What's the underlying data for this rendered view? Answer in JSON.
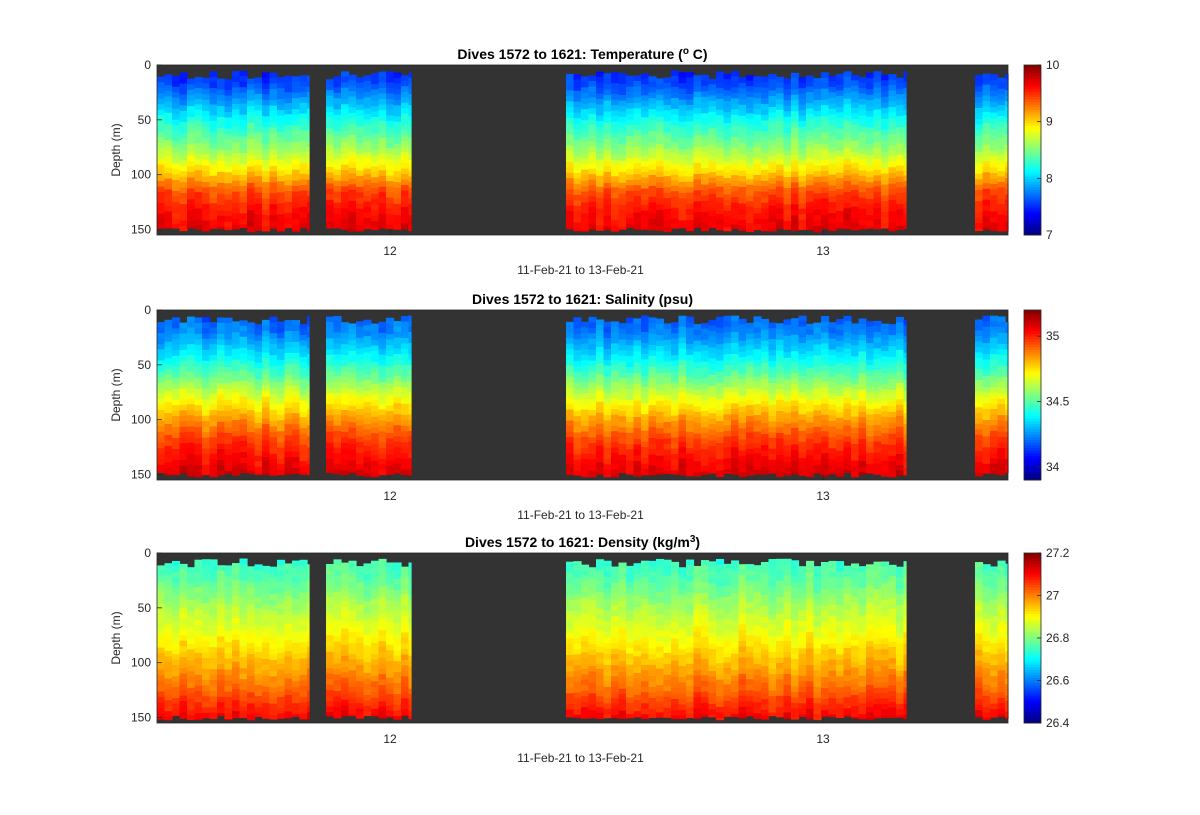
{
  "chart_data": [
    {
      "type": "heatmap",
      "title": "Dives 1572 to 1621: Temperature (",
      "title_sup": "o",
      "title_end": " C)",
      "xlabel": "11-Feb-21 to 13-Feb-21",
      "ylabel": "Depth (m)",
      "y_ticks": [
        "0",
        "50",
        "100",
        "150"
      ],
      "x_ticks": [
        "12",
        "13"
      ],
      "ylim": [
        0,
        155
      ],
      "colorbar_range": [
        7,
        10
      ],
      "colorbar_ticks": [
        "7",
        "8",
        "9",
        "10"
      ],
      "gradient": [
        [
          0,
          0.15
        ],
        [
          18,
          0.2
        ],
        [
          35,
          0.3
        ],
        [
          55,
          0.42
        ],
        [
          75,
          0.52
        ],
        [
          95,
          0.65
        ],
        [
          115,
          0.8
        ],
        [
          135,
          0.87
        ],
        [
          155,
          0.9
        ]
      ],
      "colormap": "jet"
    },
    {
      "type": "heatmap",
      "title": "Dives 1572 to 1621: Salinity (psu)",
      "xlabel": "11-Feb-21 to 13-Feb-21",
      "ylabel": "Depth (m)",
      "y_ticks": [
        "0",
        "50",
        "100",
        "150"
      ],
      "x_ticks": [
        "12",
        "13"
      ],
      "ylim": [
        0,
        155
      ],
      "colorbar_range": [
        33.9,
        35.2
      ],
      "colorbar_ticks": [
        "34",
        "34.5",
        "35"
      ],
      "gradient": [
        [
          0,
          0.2
        ],
        [
          20,
          0.25
        ],
        [
          40,
          0.35
        ],
        [
          60,
          0.47
        ],
        [
          80,
          0.6
        ],
        [
          100,
          0.72
        ],
        [
          120,
          0.82
        ],
        [
          140,
          0.88
        ],
        [
          155,
          0.92
        ]
      ],
      "colormap": "jet"
    },
    {
      "type": "heatmap",
      "title": "Dives 1572 to 1621: Density (kg/m",
      "title_sup": "3",
      "title_end": ")",
      "xlabel": "11-Feb-21 to 13-Feb-21",
      "ylabel": "Depth (m)",
      "y_ticks": [
        "0",
        "50",
        "100",
        "150"
      ],
      "x_ticks": [
        "12",
        "13"
      ],
      "ylim": [
        0,
        155
      ],
      "colorbar_range": [
        26.4,
        27.2
      ],
      "colorbar_ticks": [
        "26.4",
        "26.6",
        "26.8",
        "27",
        "27.2"
      ],
      "gradient": [
        [
          0,
          0.42
        ],
        [
          25,
          0.47
        ],
        [
          50,
          0.55
        ],
        [
          75,
          0.62
        ],
        [
          100,
          0.7
        ],
        [
          125,
          0.78
        ],
        [
          145,
          0.86
        ],
        [
          155,
          0.9
        ]
      ],
      "colormap": "jet"
    }
  ],
  "colors": {
    "no_data": "#333333",
    "axis": "#262626",
    "background": "#ffffff"
  }
}
